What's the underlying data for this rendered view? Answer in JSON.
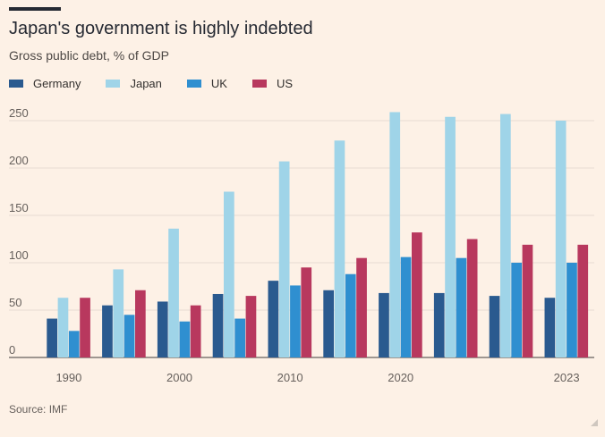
{
  "header": {
    "title": "Japan's government is highly indebted",
    "subtitle": "Gross public debt, % of GDP"
  },
  "footer": {
    "source": "Source: IMF"
  },
  "chart_data": {
    "type": "bar",
    "title": "Japan's government is highly indebted",
    "subtitle": "Gross public debt, % of GDP",
    "xlabel": "",
    "ylabel": "",
    "ylim": [
      0,
      260
    ],
    "yticks": [
      0,
      50,
      100,
      150,
      200,
      250
    ],
    "grid": true,
    "legend_position": "top-left",
    "categories": [
      "1990",
      "",
      "2000",
      "",
      "2010",
      "",
      "2020",
      "",
      "",
      "2023"
    ],
    "series": [
      {
        "name": "Germany",
        "color": "#2a5a8f",
        "values": [
          41,
          55,
          59,
          67,
          81,
          71,
          68,
          68,
          65,
          63
        ]
      },
      {
        "name": "Japan",
        "color": "#9fd4e8",
        "values": [
          63,
          93,
          136,
          175,
          207,
          229,
          259,
          254,
          257,
          250
        ]
      },
      {
        "name": "UK",
        "color": "#2f8fd0",
        "values": [
          28,
          45,
          38,
          41,
          76,
          88,
          106,
          105,
          100,
          100
        ]
      },
      {
        "name": "US",
        "color": "#b8385e",
        "values": [
          63,
          71,
          55,
          65,
          95,
          105,
          132,
          125,
          119,
          119
        ]
      }
    ]
  }
}
